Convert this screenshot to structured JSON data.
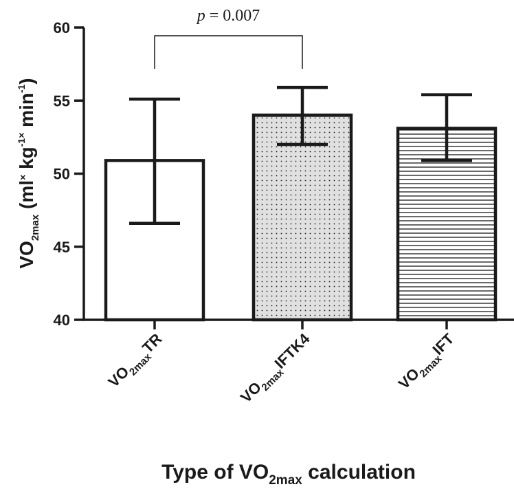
{
  "chart_data": {
    "type": "bar",
    "categories": [
      {
        "main": "VO",
        "sub": "2max",
        "tail": "TR"
      },
      {
        "main": "VO",
        "sub": "2max",
        "tail": "IFTK4"
      },
      {
        "main": "VO",
        "sub": "2max",
        "tail": "IFT"
      }
    ],
    "values": [
      50.9,
      54.0,
      53.1
    ],
    "error_upper": [
      55.1,
      55.9,
      55.4
    ],
    "error_lower": [
      46.6,
      52.0,
      50.9
    ],
    "fills": [
      "none",
      "dots",
      "horizontal-lines"
    ],
    "ylim": [
      40,
      60
    ],
    "yticks": [
      "40",
      "45",
      "50",
      "55",
      "60"
    ],
    "ylabel": {
      "main": "VO",
      "sub": "2max",
      "open": " (ml",
      "x1": "×",
      "kg": " kg",
      "exp1": "-1",
      "x2": "×",
      "min": " min",
      "exp2": "-1",
      "close": ")"
    },
    "xlabel": {
      "pre": "Type of VO",
      "sub": "2max",
      "post": " calculation"
    },
    "annotation": {
      "p_italic": "p",
      "p_rest": " = 0.007",
      "between": [
        0,
        1
      ]
    },
    "colors": {
      "ink": "#1a1a1a",
      "dot_bg": "#e0e0e0"
    }
  }
}
